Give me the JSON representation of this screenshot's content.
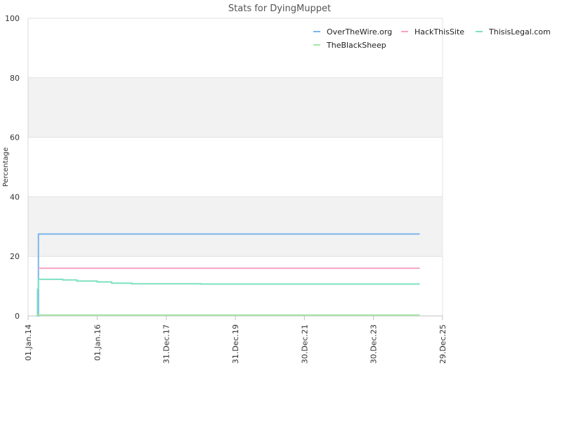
{
  "chart_data": {
    "type": "line",
    "title": "Stats for DyingMuppet",
    "ylabel": "Percentage",
    "xlabel": "",
    "ylim": [
      0,
      100
    ],
    "xlim": [
      "2014-01-01",
      "2025-12-29"
    ],
    "y_ticks": [
      0,
      20,
      40,
      60,
      80,
      100
    ],
    "x_ticks": [
      "01.Jan.14",
      "01.Jan.16",
      "31.Dec.17",
      "31.Dec.19",
      "30.Dec.21",
      "30.Dec.23",
      "29.Dec.25"
    ],
    "x_tick_dates": [
      "2014-01-01",
      "2016-01-01",
      "2017-12-31",
      "2019-12-31",
      "2021-12-30",
      "2023-12-30",
      "2025-12-29"
    ],
    "grid": "horizontal bands",
    "legend_position": "top-right",
    "series": [
      {
        "name": "OverTheWire.org",
        "color": "#7cb5ec",
        "points": [
          [
            "2014-04-01",
            0
          ],
          [
            "2014-04-20",
            27.5
          ],
          [
            "2025-05-01",
            27.5
          ]
        ]
      },
      {
        "name": "HackThisSite",
        "color": "#f7a3c4",
        "points": [
          [
            "2014-04-20",
            16
          ],
          [
            "2025-05-01",
            16
          ]
        ]
      },
      {
        "name": "ThisisLegal.com",
        "color": "#7ee0c2",
        "points": [
          [
            "2014-04-01",
            0
          ],
          [
            "2014-04-10",
            9
          ],
          [
            "2014-04-20",
            12.3
          ],
          [
            "2015-01-01",
            12.1
          ],
          [
            "2015-06-01",
            11.7
          ],
          [
            "2016-01-01",
            11.4
          ],
          [
            "2016-06-01",
            11
          ],
          [
            "2017-01-01",
            10.8
          ],
          [
            "2019-01-01",
            10.7
          ],
          [
            "2025-05-01",
            10.7
          ]
        ]
      },
      {
        "name": "TheBlackSheep",
        "color": "#a5e8a5",
        "points": [
          [
            "2014-04-01",
            0.3
          ],
          [
            "2025-05-01",
            0.3
          ]
        ]
      }
    ]
  }
}
